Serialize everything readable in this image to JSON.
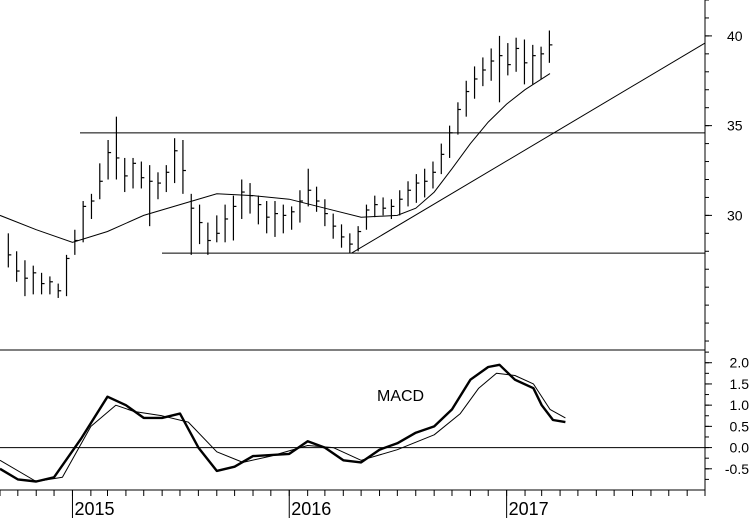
{
  "chart_data": [
    {
      "type": "ohlc",
      "panel": "price",
      "x_axis": {
        "type": "date",
        "tick_labels": [
          "2015",
          "2016",
          "2017"
        ],
        "tick_dates": [
          "2015-01-01",
          "2016-01-01",
          "2017-01-01"
        ],
        "range": [
          "2014-09-01",
          "2017-12-01"
        ]
      },
      "y_axis": {
        "side": "right",
        "tick_labels": [
          "30",
          "35",
          "40"
        ],
        "range": [
          22.5,
          42
        ]
      },
      "series": [
        {
          "kind": "price-bars",
          "points": [
            [
              "2014-09-15",
              29,
              27.1,
              27.8
            ],
            [
              "2014-09-29",
              28,
              26.3,
              26.9
            ],
            [
              "2014-10-13",
              27.5,
              25.5,
              26.5
            ],
            [
              "2014-10-27",
              27.2,
              25.6,
              26.8
            ],
            [
              "2014-11-10",
              26.8,
              25.6,
              26.2
            ],
            [
              "2014-11-24",
              26.6,
              25.6,
              26.3
            ],
            [
              "2014-12-08",
              26.2,
              25.4,
              25.8
            ],
            [
              "2014-12-22",
              27.8,
              25.5,
              27.6
            ],
            [
              "2015-01-05",
              29.2,
              27.8,
              28.6
            ],
            [
              "2015-01-19",
              30.8,
              28.5,
              30.5
            ],
            [
              "2015-02-02",
              31.2,
              29.8,
              30.8
            ],
            [
              "2015-02-16",
              32.9,
              30.9,
              31.9
            ],
            [
              "2015-03-02",
              34.2,
              32.0,
              33.5
            ],
            [
              "2015-03-16",
              35.5,
              32.0,
              33.2
            ],
            [
              "2015-03-30",
              33.2,
              31.3,
              32.2
            ],
            [
              "2015-04-13",
              33.2,
              31.5,
              32.9
            ],
            [
              "2015-04-27",
              33.0,
              31.5,
              32.1
            ],
            [
              "2015-05-11",
              32.8,
              29.4,
              31.9
            ],
            [
              "2015-05-25",
              32.4,
              30.9,
              31.8
            ],
            [
              "2015-06-08",
              32.8,
              31.3,
              32.4
            ],
            [
              "2015-06-22",
              34.3,
              31.8,
              33.6
            ],
            [
              "2015-07-06",
              34.2,
              31.2,
              32.5
            ],
            [
              "2015-07-20",
              31.2,
              27.8,
              30.4
            ],
            [
              "2015-08-03",
              30.6,
              28.4,
              29.6
            ],
            [
              "2015-08-17",
              29.6,
              27.8,
              28.6
            ],
            [
              "2015-09-01",
              30.0,
              28.5,
              29.0
            ],
            [
              "2015-09-15",
              30.6,
              28.5,
              29.8
            ],
            [
              "2015-09-29",
              31.1,
              28.6,
              30.5
            ],
            [
              "2015-10-13",
              32.0,
              29.8,
              31.3
            ],
            [
              "2015-10-27",
              31.8,
              30.1,
              31.1
            ],
            [
              "2015-11-10",
              31.1,
              29.5,
              30.6
            ],
            [
              "2015-11-24",
              30.8,
              29.0,
              29.9
            ],
            [
              "2015-12-08",
              30.8,
              28.8,
              30.1
            ],
            [
              "2015-12-22",
              30.6,
              29.0,
              30.0
            ],
            [
              "2016-01-05",
              30.5,
              29.2,
              30.2
            ],
            [
              "2016-01-19",
              31.4,
              29.6,
              30.8
            ],
            [
              "2016-02-02",
              32.6,
              30.5,
              31.4
            ],
            [
              "2016-02-16",
              31.6,
              30.2,
              30.8
            ],
            [
              "2016-03-01",
              30.9,
              29.4,
              30.1
            ],
            [
              "2016-03-15",
              30.1,
              28.7,
              29.4
            ],
            [
              "2016-03-29",
              29.5,
              28.2,
              28.8
            ],
            [
              "2016-04-12",
              29.0,
              27.9,
              28.4
            ],
            [
              "2016-04-26",
              29.4,
              28.0,
              29.1
            ],
            [
              "2016-05-10",
              30.6,
              29.2,
              30.3
            ],
            [
              "2016-05-24",
              31.1,
              29.9,
              30.6
            ],
            [
              "2016-06-07",
              31.0,
              30.0,
              30.4
            ],
            [
              "2016-06-21",
              30.9,
              29.8,
              30.5
            ],
            [
              "2016-07-05",
              31.4,
              30.0,
              30.9
            ],
            [
              "2016-07-19",
              31.9,
              30.5,
              31.4
            ],
            [
              "2016-08-02",
              32.3,
              30.7,
              31.8
            ],
            [
              "2016-08-16",
              32.6,
              31.0,
              31.9
            ],
            [
              "2016-08-30",
              33.0,
              31.5,
              32.4
            ],
            [
              "2016-09-13",
              34.0,
              32.3,
              33.4
            ],
            [
              "2016-09-27",
              35.0,
              33.2,
              34.6
            ],
            [
              "2016-10-11",
              36.3,
              34.5,
              35.9
            ],
            [
              "2016-10-25",
              37.5,
              35.5,
              36.9
            ],
            [
              "2016-11-08",
              38.3,
              36.5,
              37.6
            ],
            [
              "2016-11-22",
              38.8,
              37.2,
              38.1
            ],
            [
              "2016-12-06",
              39.3,
              37.5,
              38.6
            ],
            [
              "2016-12-20",
              40.0,
              36.3,
              38.9
            ],
            [
              "2017-01-03",
              39.6,
              37.8,
              38.4
            ],
            [
              "2017-01-17",
              39.9,
              38.0,
              39.3
            ],
            [
              "2017-01-31",
              39.8,
              37.3,
              38.5
            ],
            [
              "2017-02-14",
              39.5,
              37.3,
              38.9
            ],
            [
              "2017-02-28",
              39.4,
              37.6,
              39.0
            ],
            [
              "2017-03-14",
              40.3,
              38.5,
              39.5
            ]
          ]
        },
        {
          "kind": "moving-average",
          "points": [
            [
              "2014-09-01",
              30.0
            ],
            [
              "2014-11-01",
              29.2
            ],
            [
              "2015-01-01",
              28.5
            ],
            [
              "2015-03-01",
              29.1
            ],
            [
              "2015-05-01",
              30.0
            ],
            [
              "2015-07-01",
              30.6
            ],
            [
              "2015-09-01",
              31.2
            ],
            [
              "2015-11-01",
              31.1
            ],
            [
              "2016-01-01",
              30.9
            ],
            [
              "2016-03-01",
              30.4
            ],
            [
              "2016-05-01",
              29.9
            ],
            [
              "2016-07-01",
              30.0
            ],
            [
              "2016-08-01",
              30.4
            ],
            [
              "2016-09-01",
              31.3
            ],
            [
              "2016-10-01",
              32.6
            ],
            [
              "2016-11-01",
              34.0
            ],
            [
              "2016-12-01",
              35.2
            ],
            [
              "2017-01-01",
              36.2
            ],
            [
              "2017-02-01",
              37.0
            ],
            [
              "2017-03-15",
              37.9
            ]
          ]
        },
        {
          "kind": "trendline",
          "points": [
            [
              "2016-04-15",
              27.9
            ],
            [
              "2017-12-01",
              39.6
            ]
          ]
        },
        {
          "kind": "horizontal-line",
          "y": 34.6
        },
        {
          "kind": "horizontal-line",
          "y": 27.9
        }
      ]
    },
    {
      "type": "line",
      "panel": "macd",
      "annotation": "MACD",
      "y_axis": {
        "side": "right",
        "tick_labels": [
          "2.0",
          "1.5",
          "1.0",
          "0.5",
          "0.0",
          "-0.5"
        ],
        "range": [
          -1.0,
          2.3
        ]
      },
      "zero_line": 0.0,
      "series": [
        {
          "kind": "macd",
          "points": [
            [
              "2014-09-01",
              -0.5
            ],
            [
              "2014-10-01",
              -0.75
            ],
            [
              "2014-11-01",
              -0.8
            ],
            [
              "2014-12-01",
              -0.7
            ],
            [
              "2015-01-15",
              0.2
            ],
            [
              "2015-03-01",
              1.2
            ],
            [
              "2015-04-01",
              1.0
            ],
            [
              "2015-05-01",
              0.7
            ],
            [
              "2015-06-01",
              0.7
            ],
            [
              "2015-07-01",
              0.8
            ],
            [
              "2015-08-01",
              0.0
            ],
            [
              "2015-09-01",
              -0.55
            ],
            [
              "2015-10-01",
              -0.45
            ],
            [
              "2015-11-01",
              -0.2
            ],
            [
              "2016-01-01",
              -0.15
            ],
            [
              "2016-02-01",
              0.15
            ],
            [
              "2016-03-01",
              0.0
            ],
            [
              "2016-04-01",
              -0.3
            ],
            [
              "2016-05-01",
              -0.35
            ],
            [
              "2016-06-01",
              -0.05
            ],
            [
              "2016-07-01",
              0.1
            ],
            [
              "2016-08-01",
              0.35
            ],
            [
              "2016-09-01",
              0.5
            ],
            [
              "2016-10-01",
              0.9
            ],
            [
              "2016-11-01",
              1.6
            ],
            [
              "2016-12-01",
              1.9
            ],
            [
              "2016-12-20",
              1.95
            ],
            [
              "2017-01-15",
              1.6
            ],
            [
              "2017-02-15",
              1.4
            ],
            [
              "2017-03-01",
              1.0
            ],
            [
              "2017-03-20",
              0.65
            ],
            [
              "2017-04-10",
              0.6
            ]
          ]
        },
        {
          "kind": "signal",
          "points": [
            [
              "2014-09-01",
              -0.3
            ],
            [
              "2014-11-01",
              -0.8
            ],
            [
              "2014-12-15",
              -0.7
            ],
            [
              "2015-02-01",
              0.5
            ],
            [
              "2015-03-15",
              1.0
            ],
            [
              "2015-04-15",
              0.85
            ],
            [
              "2015-06-01",
              0.75
            ],
            [
              "2015-07-15",
              0.6
            ],
            [
              "2015-09-01",
              -0.1
            ],
            [
              "2015-10-15",
              -0.35
            ],
            [
              "2015-12-01",
              -0.2
            ],
            [
              "2016-02-01",
              0.05
            ],
            [
              "2016-03-15",
              0.0
            ],
            [
              "2016-05-01",
              -0.3
            ],
            [
              "2016-07-01",
              -0.05
            ],
            [
              "2016-09-01",
              0.3
            ],
            [
              "2016-10-15",
              0.8
            ],
            [
              "2016-11-15",
              1.4
            ],
            [
              "2016-12-15",
              1.75
            ],
            [
              "2017-01-15",
              1.7
            ],
            [
              "2017-02-15",
              1.5
            ],
            [
              "2017-03-15",
              0.9
            ],
            [
              "2017-04-10",
              0.7
            ]
          ]
        }
      ]
    }
  ]
}
